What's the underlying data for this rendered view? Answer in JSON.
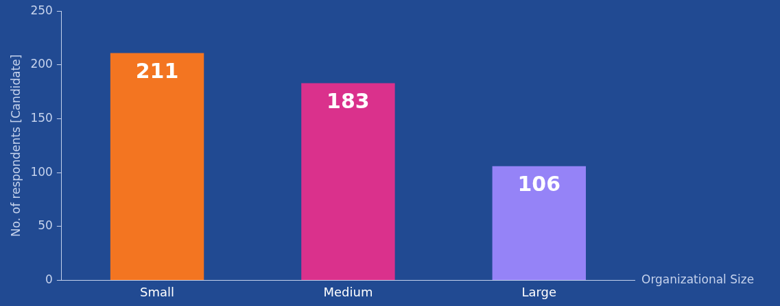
{
  "chart_data": {
    "type": "bar",
    "xlabel": "Organizational Size",
    "ylabel": "No. of respondents [Candidate]",
    "categories": [
      "Small",
      "Medium",
      "Large"
    ],
    "values": [
      211,
      183,
      106
    ],
    "colors": [
      "#f37521",
      "#da318c",
      "#9583f7"
    ],
    "ylim": [
      0,
      250
    ],
    "yticks": [
      0,
      50,
      100,
      150,
      200,
      250
    ],
    "grid": false,
    "legend": false,
    "data_labels": true
  }
}
